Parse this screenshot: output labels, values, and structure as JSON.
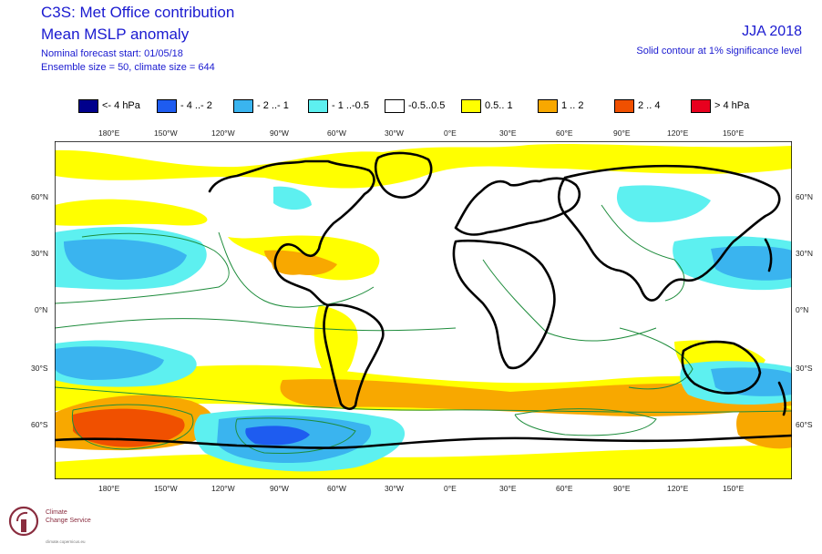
{
  "header": {
    "title_line1": "C3S: Met Office contribution",
    "title_line2": "Mean MSLP anomaly",
    "subtitle_line1": "Nominal forecast start: 01/05/18",
    "subtitle_line2": "Ensemble size = 50, climate size = 644",
    "season": "JJA 2018",
    "significance_note": "Solid contour at 1% significance level"
  },
  "legend": [
    {
      "label": "<- 4 hPa",
      "color": "#00008c"
    },
    {
      "label": "- 4 ..- 2",
      "color": "#1e5cf0"
    },
    {
      "label": "- 2 ..- 1",
      "color": "#3ab4ef"
    },
    {
      "label": "- 1 ..-0.5",
      "color": "#5df0f0"
    },
    {
      "label": "-0.5..0.5",
      "color": "#ffffff"
    },
    {
      "label": "0.5.. 1",
      "color": "#ffff00"
    },
    {
      "label": "1 .. 2",
      "color": "#f8a800"
    },
    {
      "label": "2 .. 4",
      "color": "#f05000"
    },
    {
      "label": "> 4 hPa",
      "color": "#e8001e"
    }
  ],
  "axes": {
    "lon_ticks": [
      "180°E",
      "150°W",
      "120°W",
      "90°W",
      "60°W",
      "30°W",
      "0°E",
      "30°E",
      "60°E",
      "90°E",
      "120°E",
      "150°E"
    ],
    "lat_ticks_left": [
      "60°N",
      "30°N",
      "0°N",
      "30°S",
      "60°S"
    ],
    "lat_ticks_right": [
      "60°N",
      "30°N",
      "0°N",
      "30°S",
      "60°S"
    ]
  },
  "logo": {
    "line1": "Climate",
    "line2": "Change Service",
    "line3": "climate.copernicus.eu"
  },
  "colors": {
    "title": "#1a1ad0",
    "coast": "#000000",
    "significance_contour": "#1e8c3c"
  }
}
